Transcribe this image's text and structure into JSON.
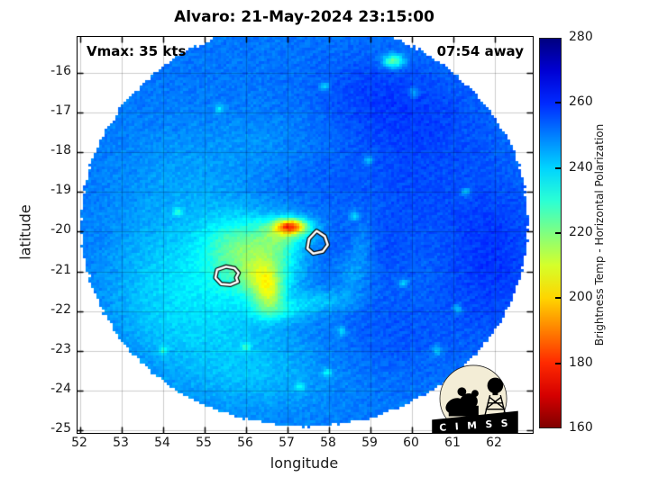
{
  "title": "Alvaro: 21-May-2024 23:15:00",
  "annotations": {
    "vmax": "Vmax: 35 kts",
    "time_away": "07:54 away"
  },
  "axes": {
    "xlabel": "longitude",
    "ylabel": "latitude",
    "x_ticks": [
      52,
      53,
      54,
      55,
      56,
      57,
      58,
      59,
      60,
      61,
      62
    ],
    "y_ticks": [
      -16,
      -17,
      -18,
      -19,
      -20,
      -21,
      -22,
      -23,
      -24,
      -25
    ],
    "x_range": [
      51.93,
      62.91
    ],
    "y_range": [
      -25.08,
      -15.09
    ],
    "grid": true
  },
  "colorbar": {
    "label": "Brightness Temp - Horizontal Polarization",
    "ticks": [
      280,
      260,
      240,
      220,
      200,
      180,
      160
    ],
    "interior_ticks": [
      260,
      240,
      220,
      200,
      180
    ],
    "range": [
      160,
      280
    ],
    "colormap": "jet-reversed-highblue-lowred"
  },
  "logo": {
    "text": "C I M S S"
  },
  "chart_data": {
    "type": "heatmap",
    "title": "Alvaro: 21-May-2024 23:15:00",
    "storm_name": "Alvaro",
    "datetime": "21-May-2024 23:15:00",
    "vmax_kts": 35,
    "time_offset": "07:54 away",
    "xlabel": "longitude",
    "ylabel": "latitude",
    "value_label": "Brightness Temp - Horizontal Polarization",
    "value_range_K": [
      160,
      280
    ],
    "swath": {
      "center_lon": 57.41,
      "center_lat": -19.8,
      "radius_lon_deg": 5.39,
      "radius_lat_deg": 5.11
    },
    "base_temp_K": 251,
    "noise_amp_K": 4.4,
    "features": [
      [
        56.0,
        -20.6,
        0.95,
        0.8,
        -16
      ],
      [
        56.3,
        -20.9,
        0.55,
        0.5,
        -13
      ],
      [
        55.7,
        -20.3,
        0.5,
        0.4,
        -8
      ],
      [
        56.55,
        -21.6,
        0.25,
        0.35,
        -24
      ],
      [
        56.4,
        -21.15,
        0.3,
        0.3,
        -12
      ],
      [
        57.08,
        -19.87,
        0.26,
        0.13,
        -50
      ],
      [
        57.0,
        -19.98,
        0.5,
        0.24,
        -17
      ],
      [
        56.75,
        -20.35,
        0.35,
        0.35,
        -9
      ],
      [
        56.9,
        -22.0,
        0.5,
        0.18,
        -8
      ],
      [
        57.85,
        -21.75,
        0.55,
        0.2,
        -8
      ],
      [
        58.55,
        -21.05,
        0.28,
        0.45,
        -7
      ],
      [
        58.8,
        -20.3,
        0.22,
        0.5,
        -6
      ],
      [
        54.9,
        -22.2,
        1.3,
        0.95,
        -8
      ],
      [
        53.9,
        -21.0,
        0.95,
        1.1,
        -6.5
      ],
      [
        56.2,
        -23.6,
        1.4,
        0.75,
        -7
      ],
      [
        54.6,
        -18.7,
        1.15,
        0.95,
        -4.5
      ],
      [
        56.6,
        -17.9,
        0.95,
        0.55,
        -3.5
      ],
      [
        60.2,
        -17.3,
        1.15,
        0.95,
        6
      ],
      [
        58.9,
        -16.4,
        1.0,
        0.7,
        4.5
      ],
      [
        58.55,
        -20.5,
        0.95,
        0.6,
        5
      ],
      [
        61.9,
        -20.6,
        0.85,
        1.5,
        8
      ],
      [
        59.5,
        -22.5,
        1.05,
        0.85,
        4
      ],
      [
        57.5,
        -18.55,
        1.25,
        0.7,
        3
      ],
      [
        59.9,
        -19.3,
        0.8,
        0.8,
        3.5
      ],
      [
        59.55,
        -15.7,
        0.18,
        0.12,
        -30
      ]
    ],
    "speckles": [
      [
        57.9,
        -16.35
      ],
      [
        60.05,
        -16.5
      ],
      [
        58.95,
        -18.2
      ],
      [
        61.1,
        -21.95
      ],
      [
        57.95,
        -23.55
      ],
      [
        55.35,
        -16.9
      ],
      [
        60.6,
        -23.0
      ],
      [
        58.3,
        -22.5
      ],
      [
        56.0,
        -22.9
      ],
      [
        54.35,
        -19.5
      ],
      [
        59.8,
        -21.3
      ],
      [
        57.3,
        -23.9
      ],
      [
        54.0,
        -23.0
      ],
      [
        58.6,
        -19.6
      ],
      [
        61.3,
        -19.0
      ]
    ],
    "speckle_spec": {
      "sigma_deg": 0.08,
      "dT": -13
    },
    "contours_K195": [
      [
        [
          57.7,
          -19.98
        ],
        [
          57.9,
          -20.12
        ],
        [
          57.97,
          -20.33
        ],
        [
          57.85,
          -20.5
        ],
        [
          57.62,
          -20.55
        ],
        [
          57.48,
          -20.42
        ],
        [
          57.52,
          -20.18
        ]
      ],
      [
        [
          55.3,
          -20.96
        ],
        [
          55.52,
          -20.88
        ],
        [
          55.72,
          -20.92
        ],
        [
          55.82,
          -21.04
        ],
        [
          55.76,
          -21.16
        ],
        [
          55.8,
          -21.26
        ],
        [
          55.62,
          -21.34
        ],
        [
          55.4,
          -21.32
        ],
        [
          55.26,
          -21.16
        ]
      ]
    ]
  }
}
